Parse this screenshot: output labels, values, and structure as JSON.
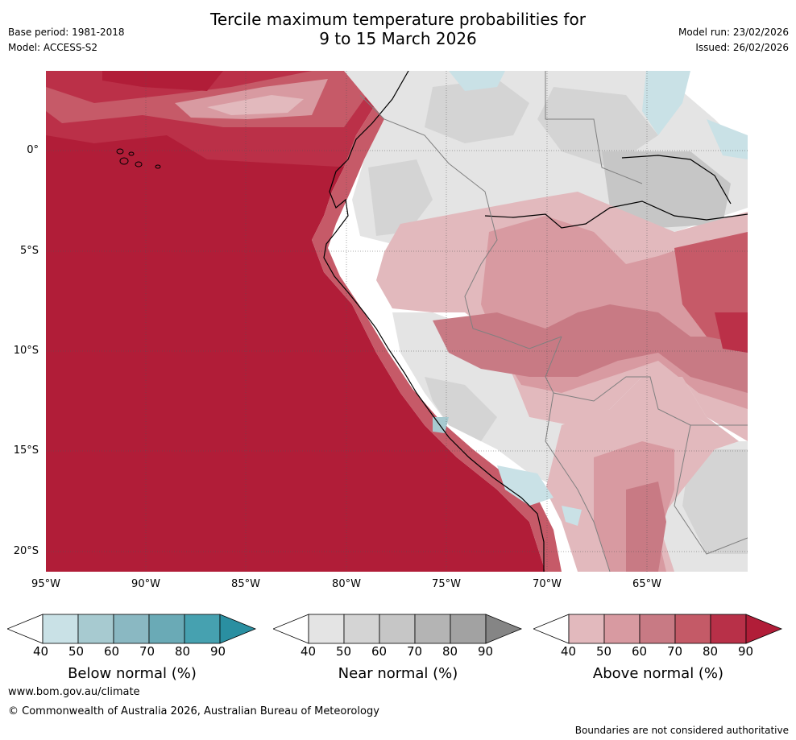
{
  "header": {
    "title_line1": "Tercile maximum temperature probabilities for",
    "title_line2": "9 to 15 March 2026",
    "base_period": "Base period: 1981-2018",
    "model": "Model: ACCESS-S2",
    "model_run": "Model run: 23/02/2026",
    "issued": "Issued: 26/02/2026"
  },
  "map": {
    "lat_labels": [
      "0°",
      "5°S",
      "10°S",
      "15°S",
      "20°S"
    ],
    "lon_labels": [
      "95°W",
      "90°W",
      "85°W",
      "80°W",
      "75°W",
      "70°W",
      "65°W"
    ],
    "colors": {
      "ocean_hot": "#b11d38",
      "above_90": "#b11d38",
      "above_80": "#bb3048",
      "above_70": "#c65a68",
      "above_60": "#cf7c85",
      "above_50": "#d89aa1",
      "above_40": "#e2b9bd",
      "near_40": "#e4e4e4",
      "near_50": "#d4d4d4",
      "near_60": "#c6c6c6",
      "below_40": "#c9e1e6",
      "below_50": "#a7cad0",
      "land_white": "#ffffff"
    }
  },
  "colorbars": [
    {
      "id": "below",
      "title": "Below normal (%)",
      "ticks": [
        "40",
        "50",
        "60",
        "70",
        "80",
        "90"
      ],
      "colors": [
        "#ffffff",
        "#c9e1e6",
        "#a7cad0",
        "#8ab8c2",
        "#6aaab6",
        "#46a1b0",
        "#2a8fa1"
      ]
    },
    {
      "id": "near",
      "title": "Near normal (%)",
      "ticks": [
        "40",
        "50",
        "60",
        "70",
        "80",
        "90"
      ],
      "colors": [
        "#ffffff",
        "#e4e4e4",
        "#d4d4d4",
        "#c6c6c6",
        "#b4b4b4",
        "#a2a2a2",
        "#858585"
      ]
    },
    {
      "id": "above",
      "title": "Above normal (%)",
      "ticks": [
        "40",
        "50",
        "60",
        "70",
        "80",
        "90"
      ],
      "colors": [
        "#ffffff",
        "#e2b9bd",
        "#d89aa1",
        "#c87a84",
        "#c45a67",
        "#b83048",
        "#b11d38"
      ]
    }
  ],
  "footer": {
    "website": "www.bom.gov.au/climate",
    "copyright": "© Commonwealth of Australia 2026, Australian Bureau of Meteorology",
    "disclaimer": "Boundaries are not considered authoritative"
  }
}
